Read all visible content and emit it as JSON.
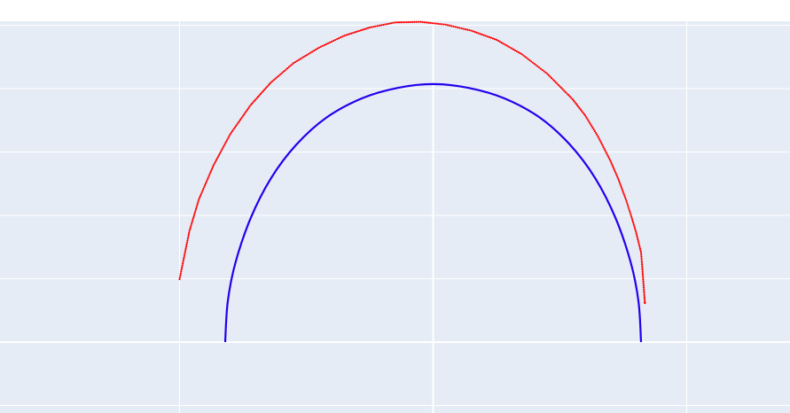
{
  "chart_data": {
    "type": "scatter",
    "title": "",
    "xlabel": "",
    "ylabel": "",
    "grid": true,
    "xlim": [
      -1.0,
      1.4
    ],
    "ylim": [
      -0.1,
      1.1
    ],
    "series": [
      {
        "mode": "markers",
        "color": "#ff0000",
        "x": [
          -1.0,
          -0.961,
          -0.924,
          -0.866,
          -0.8,
          -0.72,
          -0.64,
          -0.55,
          -0.45,
          -0.35,
          -0.25,
          -0.15,
          -0.05,
          0.05,
          0.15,
          0.25,
          0.35,
          0.45,
          0.55,
          0.6,
          0.65,
          0.7,
          0.73,
          0.76,
          0.78,
          0.8,
          0.82,
          0.825,
          0.835
        ],
        "y": [
          0.2,
          0.353,
          0.453,
          0.562,
          0.661,
          0.753,
          0.825,
          0.887,
          0.936,
          0.974,
          1.0,
          1.016,
          1.018,
          1.009,
          0.99,
          0.961,
          0.915,
          0.853,
          0.772,
          0.72,
          0.654,
          0.575,
          0.519,
          0.454,
          0.404,
          0.35,
          0.285,
          0.235,
          0.125
        ]
      },
      {
        "mode": "lines",
        "color": "#2200ee",
        "x": [
          -0.82,
          -0.81,
          -0.78,
          -0.72,
          -0.64,
          -0.54,
          -0.42,
          -0.28,
          -0.14,
          0.0,
          0.14,
          0.28,
          0.42,
          0.54,
          0.64,
          0.72,
          0.78,
          0.81,
          0.82
        ],
        "y": [
          0.0,
          0.128,
          0.251,
          0.393,
          0.52,
          0.627,
          0.714,
          0.775,
          0.808,
          0.82,
          0.808,
          0.775,
          0.714,
          0.627,
          0.52,
          0.393,
          0.251,
          0.128,
          0.0
        ]
      }
    ],
    "colors": {
      "plot_background": "#e5ecf6",
      "grid": "#ffffff",
      "paper": "#ffffff"
    }
  }
}
